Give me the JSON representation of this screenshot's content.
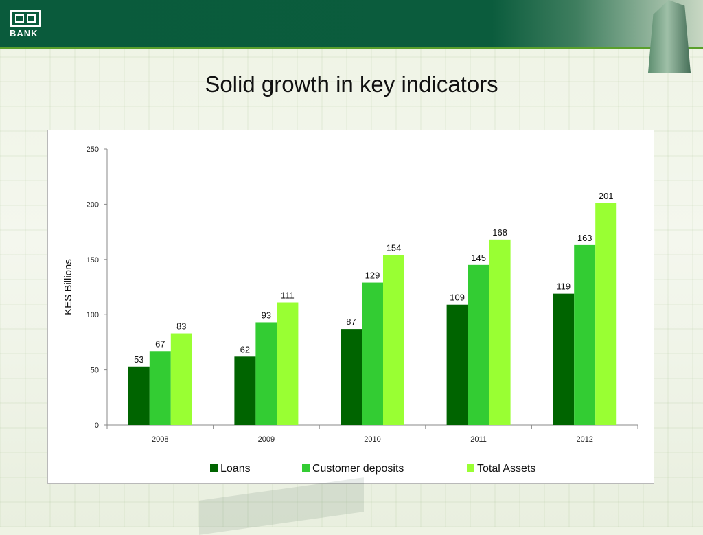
{
  "brand": {
    "logo_text": "BANK",
    "colors": {
      "banner": "#0b5c3d",
      "accent_line": "#5aa02c"
    }
  },
  "slide": {
    "title": "Solid growth in key indicators"
  },
  "chart_data": {
    "type": "bar",
    "title": "",
    "xlabel": "",
    "ylabel": "KES  Billions",
    "ylim": [
      0,
      250
    ],
    "yticks": [
      0,
      50,
      100,
      150,
      200,
      250
    ],
    "categories": [
      "2008",
      "2009",
      "2010",
      "2011",
      "2012"
    ],
    "series": [
      {
        "name": "Loans",
        "color": "#006400",
        "values": [
          53,
          62,
          87,
          109,
          119
        ]
      },
      {
        "name": "Customer deposits",
        "color": "#33cc33",
        "values": [
          67,
          93,
          129,
          145,
          163
        ]
      },
      {
        "name": "Total Assets",
        "color": "#99ff33",
        "values": [
          83,
          111,
          154,
          168,
          201
        ]
      }
    ],
    "legend": "bottom",
    "grid": false,
    "data_labels": true
  }
}
